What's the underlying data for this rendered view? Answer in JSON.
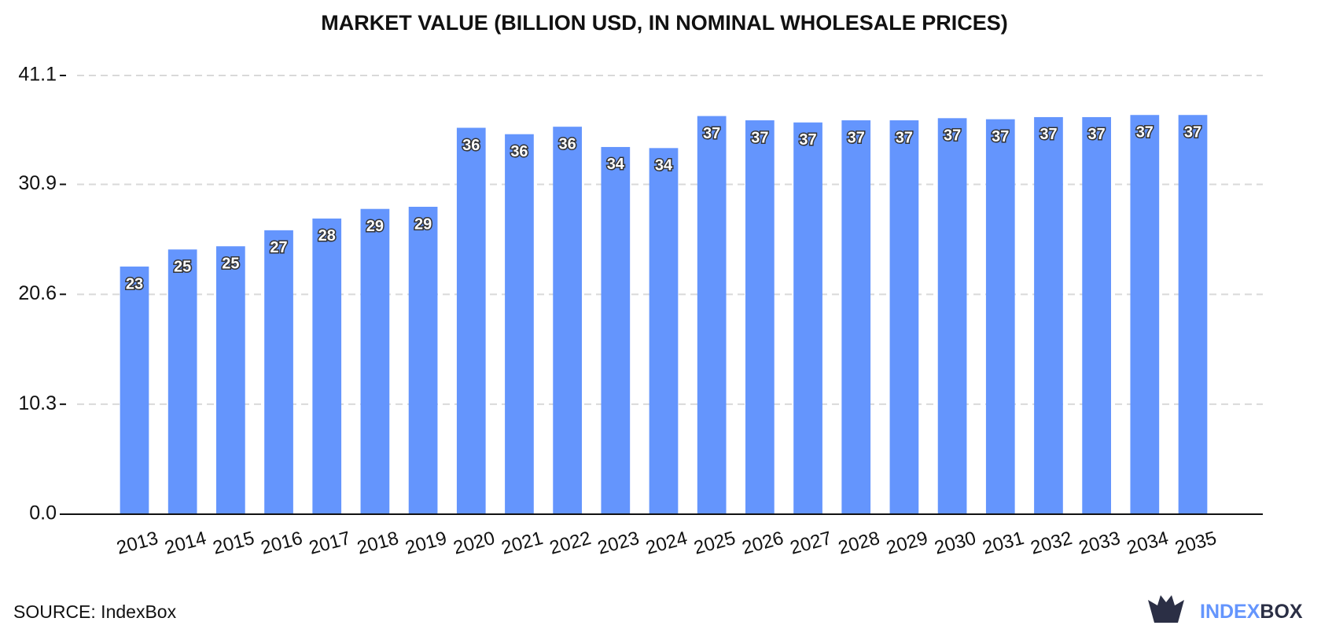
{
  "chart_data": {
    "type": "bar",
    "title": "MARKET VALUE (BILLION USD, IN NOMINAL WHOLESALE PRICES)",
    "categories": [
      "2013",
      "2014",
      "2015",
      "2016",
      "2017",
      "2018",
      "2019",
      "2020",
      "2021",
      "2022",
      "2023",
      "2024",
      "2025",
      "2026",
      "2027",
      "2028",
      "2029",
      "2030",
      "2031",
      "2032",
      "2033",
      "2034",
      "2035"
    ],
    "values": [
      23.2,
      24.8,
      25.1,
      26.6,
      27.7,
      28.6,
      28.8,
      36.2,
      35.6,
      36.3,
      34.4,
      34.3,
      37.3,
      36.9,
      36.7,
      36.9,
      36.9,
      37.1,
      37.0,
      37.2,
      37.2,
      37.4,
      37.4
    ],
    "value_labels": [
      "23",
      "25",
      "25",
      "27",
      "28",
      "29",
      "29",
      "36",
      "36",
      "36",
      "34",
      "34",
      "37",
      "37",
      "37",
      "37",
      "37",
      "37",
      "37",
      "37",
      "37",
      "37",
      "37"
    ],
    "color": "#6495fd",
    "ylim": [
      0,
      41.1
    ],
    "yticks": [
      {
        "value": 0,
        "label": "0.0"
      },
      10.3,
      20.6,
      30.9,
      41.1
    ],
    "grid": true,
    "source": "SOURCE: IndexBox",
    "logo": [
      "INDEX",
      "BOX"
    ]
  }
}
